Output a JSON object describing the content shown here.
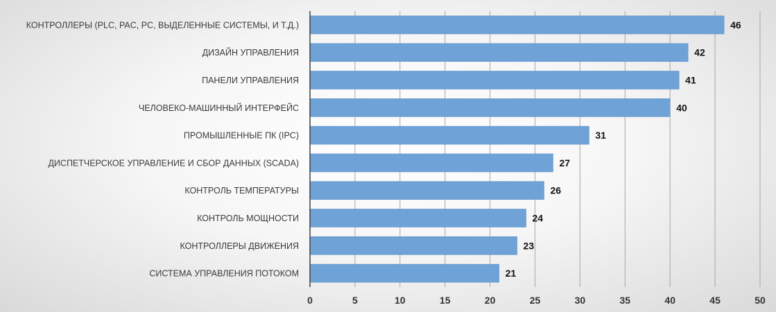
{
  "chart_data": {
    "type": "bar",
    "orientation": "horizontal",
    "title": "",
    "xlabel": "",
    "ylabel": "",
    "categories": [
      "КОНТРОЛЛЕРЫ (PLC, PAC, PC, ВЫДЕЛЕННЫЕ СИСТЕМЫ,  И Т.Д.)",
      "ДИЗАЙН УПРАВЛЕНИЯ",
      "ПАНЕЛИ УПРАВЛЕНИЯ",
      "ЧЕЛОВЕКО-МАШИННЫЙ  ИНТЕРФЕЙС",
      "ПРОМЫШЛЕННЫЕ  ПК (IPC)",
      "ДИСПЕТЧЕРСКОЕ  УПРАВЛЕНИЕ И СБОР ДАННЫХ  (SCADA)",
      "КОНТРОЛЬ ТЕМПЕРАТУРЫ",
      "КОНТРОЛЬ  МОЩНОСТИ",
      "КОНТРОЛЛЕРЫ ДВИЖЕНИЯ",
      "СИСТЕМА  УПРАВЛЕНИЯ ПОТОКОМ"
    ],
    "values": [
      46,
      42,
      41,
      40,
      31,
      27,
      26,
      24,
      23,
      21
    ],
    "data_labels": [
      "46",
      "42",
      "41",
      "40",
      "31",
      "27",
      "26",
      "24",
      "23",
      "21"
    ],
    "xlim": [
      0,
      50
    ],
    "x_ticks": [
      0,
      5,
      10,
      15,
      20,
      25,
      30,
      35,
      40,
      45,
      50
    ],
    "x_tick_labels": [
      "0",
      "5",
      "10",
      "15",
      "20",
      "25",
      "30",
      "35",
      "40",
      "45",
      "50"
    ],
    "grid": "vertical",
    "legend": "none",
    "colors": {
      "bar": "#6fa3d8",
      "bar_edge": "#5b8fc7",
      "grid": "#a6a6a6",
      "axis": "#404040",
      "label": "#3a3a3a",
      "value": "#111111"
    }
  }
}
